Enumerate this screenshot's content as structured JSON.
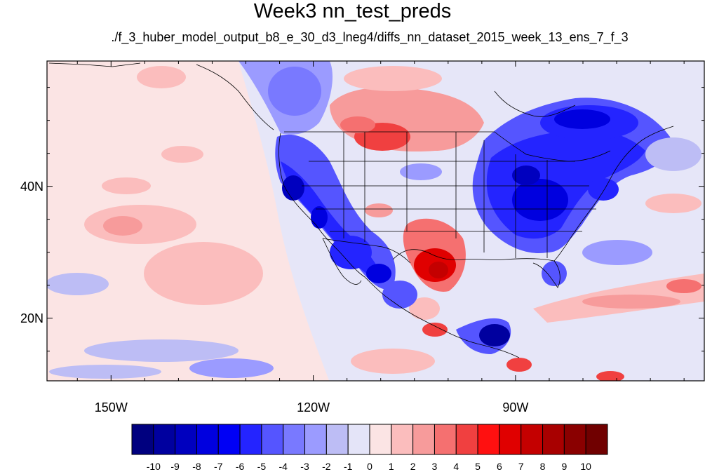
{
  "title": "Week3 nn_test_preds",
  "subtitle": "./f_3_huber_model_output_b8_e_30_d3_lneg4/diffs_nn_dataset_2015_week_13_ens_7_f_3",
  "map": {
    "projection": "cylindrical-equidistant",
    "lon_range": [
      -159.5,
      -62
    ],
    "lat_range": [
      10.5,
      59
    ],
    "x_ticks": [
      {
        "lon": -150,
        "label": "150W"
      },
      {
        "lon": -120,
        "label": "120W"
      },
      {
        "lon": -90,
        "label": "90W"
      }
    ],
    "y_ticks": [
      {
        "lat": 40,
        "label": "40N"
      },
      {
        "lat": 20,
        "label": "20N"
      }
    ],
    "background_color": "#e8e8f8"
  },
  "colorbar": {
    "labels": [
      "-10",
      "-9",
      "-8",
      "-7",
      "-6",
      "-5",
      "-4",
      "-3",
      "-2",
      "-1",
      "0",
      "1",
      "2",
      "3",
      "4",
      "5",
      "6",
      "7",
      "8",
      "9",
      "10"
    ],
    "colors": [
      "#00007f",
      "#00009f",
      "#0000bf",
      "#0000df",
      "#0000f5",
      "#2424ff",
      "#5555ff",
      "#7979ff",
      "#9b9bff",
      "#bdbdf5",
      "#e4e4f8",
      "#fbe4e4",
      "#fbbdbd",
      "#f79b9b",
      "#f57070",
      "#f04040",
      "#ff1010",
      "#e00000",
      "#c40000",
      "#a80000",
      "#8a0000",
      "#700000"
    ]
  }
}
